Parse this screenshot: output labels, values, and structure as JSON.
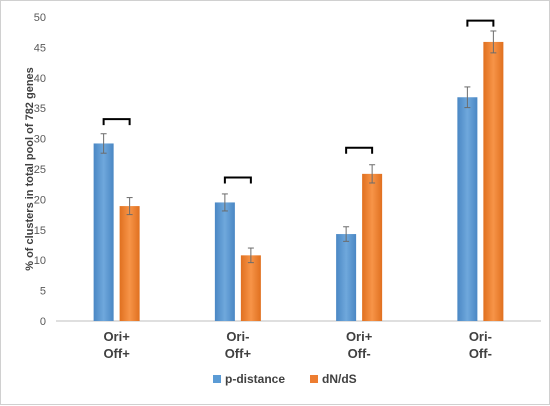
{
  "chart_data": {
    "type": "bar",
    "title": "",
    "xlabel": "",
    "ylabel": "% of clusters in total pool of 782 genes",
    "ylim": [
      0,
      50
    ],
    "yticks": [
      0,
      5,
      10,
      15,
      20,
      25,
      30,
      35,
      40,
      45,
      50
    ],
    "grid": false,
    "legend": "bottom",
    "categories": [
      [
        "Ori+",
        "Off+"
      ],
      [
        "Ori-",
        "Off+"
      ],
      [
        "Ori+",
        "Off-"
      ],
      [
        "Ori-",
        "Off-"
      ]
    ],
    "series": [
      {
        "name": "p-distance",
        "color": "#5b9bd5",
        "values": [
          29.2,
          19.5,
          14.3,
          36.8
        ],
        "errors": [
          1.6,
          1.4,
          1.2,
          1.7
        ]
      },
      {
        "name": "dN/dS",
        "color": "#ed7d31",
        "values": [
          18.9,
          10.8,
          24.2,
          45.9
        ],
        "errors": [
          1.4,
          1.2,
          1.5,
          1.8
        ]
      }
    ],
    "significance_brackets": [
      {
        "category": 0,
        "y": 33.2
      },
      {
        "category": 1,
        "y": 23.6
      },
      {
        "category": 2,
        "y": 28.5
      },
      {
        "category": 3,
        "y": 49.4
      }
    ]
  }
}
